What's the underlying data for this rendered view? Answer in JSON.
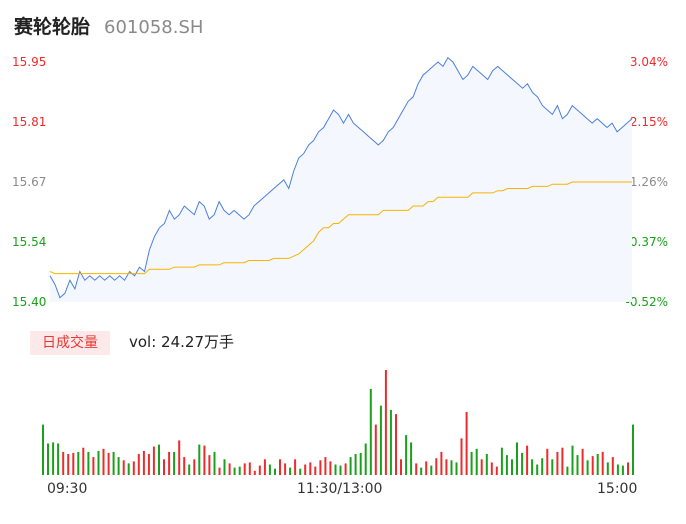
{
  "header": {
    "name": "赛轮轮胎",
    "code": "601058.SH"
  },
  "colors": {
    "up": "#ee2b2b",
    "down": "#1aa01a",
    "neutral": "#8a8a8a",
    "price_line": "#4a7fe0",
    "avg_line": "#f6b400",
    "area_fill": "#f4f7fd"
  },
  "volume_panel": {
    "tab_label": "日成交量",
    "vol_text": "vol: 24.27万手"
  },
  "chart_data": {
    "type": "line",
    "y_axis_left": {
      "ticks": [
        "15.95",
        "15.81",
        "15.67",
        "15.54",
        "15.40"
      ],
      "ylim": [
        15.4,
        15.95
      ]
    },
    "y_axis_right": {
      "ticks": [
        "3.04%",
        "2.15%",
        "1.26%",
        "0.37%",
        "-0.52%"
      ]
    },
    "x_axis": {
      "ticks": [
        "09:30",
        "11:30/13:00",
        "15:00"
      ]
    },
    "price": [
      15.46,
      15.44,
      15.41,
      15.42,
      15.45,
      15.43,
      15.47,
      15.45,
      15.46,
      15.45,
      15.46,
      15.45,
      15.46,
      15.45,
      15.46,
      15.45,
      15.47,
      15.46,
      15.48,
      15.47,
      15.52,
      15.55,
      15.57,
      15.58,
      15.61,
      15.59,
      15.6,
      15.62,
      15.61,
      15.6,
      15.63,
      15.62,
      15.59,
      15.6,
      15.63,
      15.61,
      15.6,
      15.61,
      15.6,
      15.59,
      15.6,
      15.62,
      15.63,
      15.64,
      15.65,
      15.66,
      15.67,
      15.68,
      15.66,
      15.7,
      15.73,
      15.74,
      15.76,
      15.77,
      15.79,
      15.8,
      15.82,
      15.84,
      15.83,
      15.81,
      15.83,
      15.81,
      15.8,
      15.79,
      15.78,
      15.77,
      15.76,
      15.77,
      15.79,
      15.8,
      15.82,
      15.84,
      15.86,
      15.87,
      15.9,
      15.92,
      15.93,
      15.94,
      15.95,
      15.94,
      15.96,
      15.95,
      15.93,
      15.91,
      15.92,
      15.94,
      15.93,
      15.92,
      15.91,
      15.93,
      15.94,
      15.93,
      15.92,
      15.91,
      15.9,
      15.89,
      15.9,
      15.88,
      15.87,
      15.85,
      15.84,
      15.83,
      15.85,
      15.82,
      15.83,
      15.85,
      15.84,
      15.83,
      15.82,
      15.81,
      15.82,
      15.81,
      15.8,
      15.81,
      15.79,
      15.8,
      15.81,
      15.82
    ],
    "avg_price": [
      15.47,
      15.465,
      15.465,
      15.465,
      15.465,
      15.465,
      15.465,
      15.465,
      15.465,
      15.465,
      15.465,
      15.465,
      15.465,
      15.465,
      15.465,
      15.465,
      15.465,
      15.465,
      15.465,
      15.465,
      15.475,
      15.475,
      15.475,
      15.475,
      15.475,
      15.48,
      15.48,
      15.48,
      15.48,
      15.48,
      15.485,
      15.485,
      15.485,
      15.485,
      15.485,
      15.49,
      15.49,
      15.49,
      15.49,
      15.49,
      15.495,
      15.495,
      15.495,
      15.495,
      15.495,
      15.5,
      15.5,
      15.5,
      15.5,
      15.505,
      15.51,
      15.52,
      15.53,
      15.54,
      15.56,
      15.57,
      15.57,
      15.58,
      15.58,
      15.59,
      15.6,
      15.6,
      15.6,
      15.6,
      15.6,
      15.6,
      15.6,
      15.61,
      15.61,
      15.61,
      15.61,
      15.61,
      15.61,
      15.62,
      15.62,
      15.62,
      15.63,
      15.63,
      15.64,
      15.64,
      15.64,
      15.64,
      15.64,
      15.64,
      15.64,
      15.65,
      15.65,
      15.65,
      15.65,
      15.65,
      15.655,
      15.655,
      15.66,
      15.66,
      15.66,
      15.66,
      15.66,
      15.665,
      15.665,
      15.665,
      15.665,
      15.67,
      15.67,
      15.67,
      15.67,
      15.675,
      15.675,
      15.675,
      15.675,
      15.675,
      15.675,
      15.675,
      15.675,
      15.675,
      15.675,
      15.675,
      15.675,
      15.675
    ],
    "volume": [
      0.48,
      0.3,
      0.31,
      0.3,
      0.22,
      0.2,
      0.21,
      0.22,
      0.26,
      0.22,
      0.17,
      0.23,
      0.25,
      0.21,
      0.22,
      0.17,
      0.14,
      0.11,
      0.13,
      0.2,
      0.23,
      0.2,
      0.27,
      0.29,
      0.15,
      0.22,
      0.22,
      0.33,
      0.17,
      0.1,
      0.15,
      0.29,
      0.28,
      0.19,
      0.22,
      0.07,
      0.15,
      0.11,
      0.07,
      0.08,
      0.11,
      0.12,
      0.04,
      0.09,
      0.15,
      0.1,
      0.06,
      0.15,
      0.11,
      0.07,
      0.15,
      0.06,
      0.1,
      0.12,
      0.08,
      0.14,
      0.17,
      0.13,
      0.1,
      0.09,
      0.11,
      0.17,
      0.2,
      0.21,
      0.3,
      0.82,
      0.48,
      0.66,
      1.0,
      0.62,
      0.58,
      0.15,
      0.38,
      0.31,
      0.11,
      0.07,
      0.13,
      0.09,
      0.16,
      0.22,
      0.15,
      0.14,
      0.12,
      0.35,
      0.6,
      0.22,
      0.25,
      0.15,
      0.2,
      0.12,
      0.08,
      0.26,
      0.19,
      0.15,
      0.31,
      0.21,
      0.28,
      0.15,
      0.1,
      0.16,
      0.25,
      0.15,
      0.22,
      0.26,
      0.08,
      0.28,
      0.19,
      0.25,
      0.14,
      0.18,
      0.2,
      0.22,
      0.12,
      0.17,
      0.1,
      0.09,
      0.12,
      0.48
    ],
    "volume_up": [
      false,
      false,
      false,
      false,
      true,
      true,
      true,
      false,
      true,
      false,
      true,
      false,
      true,
      true,
      false,
      false,
      true,
      false,
      true,
      true,
      true,
      true,
      true,
      false,
      true,
      true,
      false,
      true,
      true,
      false,
      true,
      false,
      true,
      true,
      false,
      true,
      false,
      true,
      false,
      false,
      true,
      true,
      true,
      true,
      true,
      false,
      false,
      true,
      true,
      false,
      true,
      false,
      true,
      true,
      true,
      true,
      true,
      true,
      false,
      false,
      true,
      false,
      false,
      false,
      false,
      false,
      true,
      false,
      true,
      false,
      true,
      true,
      false,
      false,
      true,
      false,
      true,
      false,
      true,
      true,
      true,
      false,
      false,
      true,
      true,
      false,
      false,
      true,
      false,
      true,
      true,
      false,
      false,
      false,
      false,
      false,
      true,
      false,
      false,
      false,
      true,
      false,
      true,
      true,
      false,
      false,
      false,
      true,
      false,
      true,
      false,
      true,
      false,
      true,
      false,
      false,
      true,
      false
    ]
  }
}
